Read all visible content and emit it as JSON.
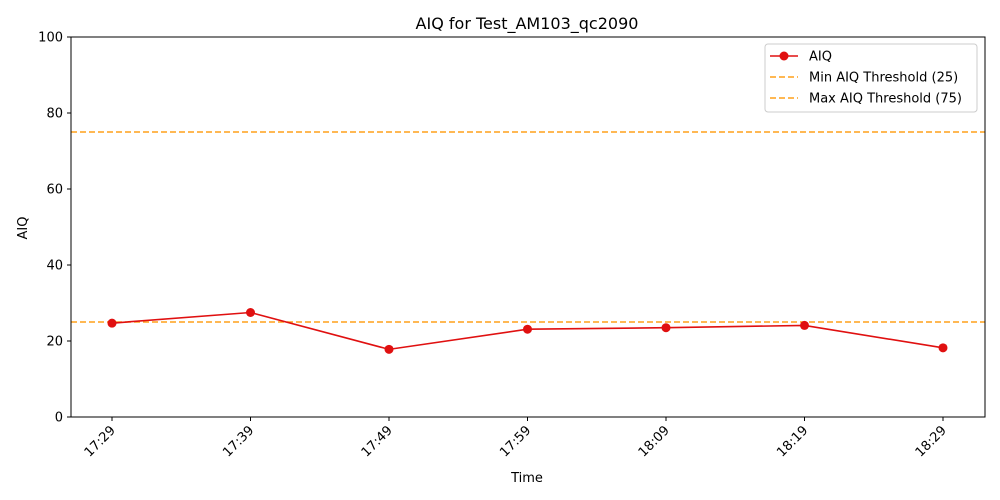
{
  "chart_data": {
    "type": "line",
    "title": "AIQ for Test_AM103_qc2090",
    "xlabel": "Time",
    "ylabel": "AIQ",
    "x": [
      "17:29",
      "17:39",
      "17:49",
      "17:59",
      "18:09",
      "18:19",
      "18:29"
    ],
    "ylim": [
      0,
      100
    ],
    "yticks": [
      0,
      20,
      40,
      60,
      80,
      100
    ],
    "series": [
      {
        "name": "AIQ",
        "color": "#e01010",
        "marker": "circle",
        "values": [
          24.7,
          27.5,
          17.8,
          23.1,
          23.5,
          24.1,
          18.2
        ]
      }
    ],
    "thresholds": [
      {
        "name": "Min AIQ Threshold (25)",
        "value": 25,
        "color": "#ffa11a",
        "style": "dashed"
      },
      {
        "name": "Max AIQ Threshold (75)",
        "value": 75,
        "color": "#ffa11a",
        "style": "dashed"
      }
    ],
    "legend": "top-right",
    "grid": false
  }
}
